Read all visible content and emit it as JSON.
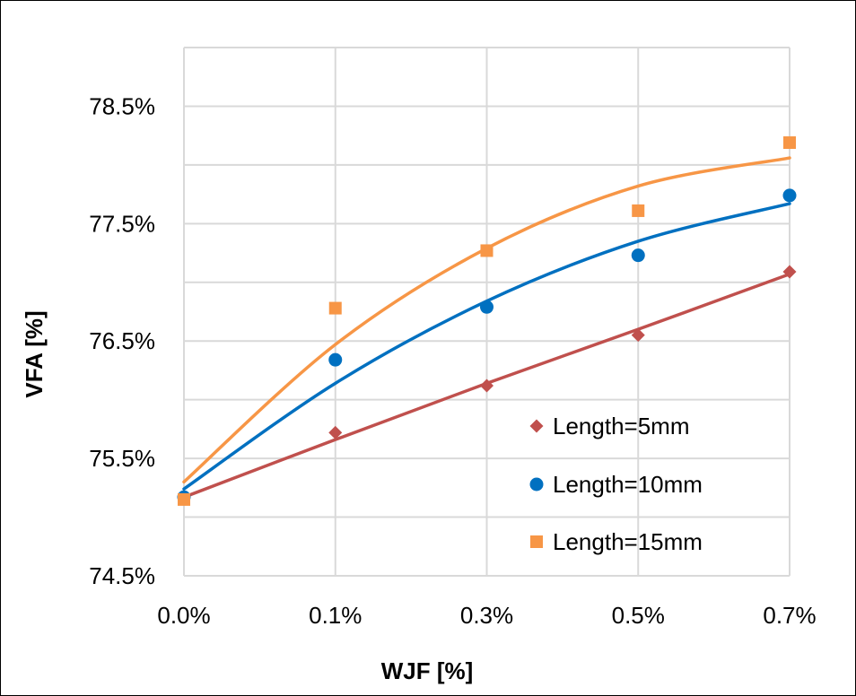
{
  "chart_data": {
    "type": "scatter",
    "title": "",
    "xlabel": "WJF [%]",
    "ylabel": "VFA [%]",
    "categories": [
      "0.0%",
      "0.1%",
      "0.3%",
      "0.5%",
      "0.7%"
    ],
    "y_ticks": [
      "74.5%",
      "75.5%",
      "76.5%",
      "77.5%",
      "78.5%"
    ],
    "ylim": [
      74.5,
      79.0
    ],
    "grid": true,
    "legend_position": "bottom-right",
    "series": [
      {
        "name": "Length=5mm",
        "marker": "diamond",
        "color": "#C0504D",
        "values": [
          75.17,
          75.72,
          76.12,
          76.55,
          77.09
        ],
        "trendline": [
          75.17,
          75.66,
          76.14,
          76.6,
          77.07
        ]
      },
      {
        "name": "Length=10mm",
        "marker": "circle",
        "color": "#0070C0",
        "values": [
          75.17,
          76.34,
          76.79,
          77.23,
          77.74
        ],
        "trendline": [
          75.24,
          76.14,
          76.84,
          77.35,
          77.67
        ]
      },
      {
        "name": "Length=15mm",
        "marker": "square",
        "color": "#F79646",
        "values": [
          75.15,
          76.78,
          77.27,
          77.61,
          78.19
        ],
        "trendline": [
          75.3,
          76.47,
          77.29,
          77.82,
          78.06
        ]
      }
    ]
  }
}
